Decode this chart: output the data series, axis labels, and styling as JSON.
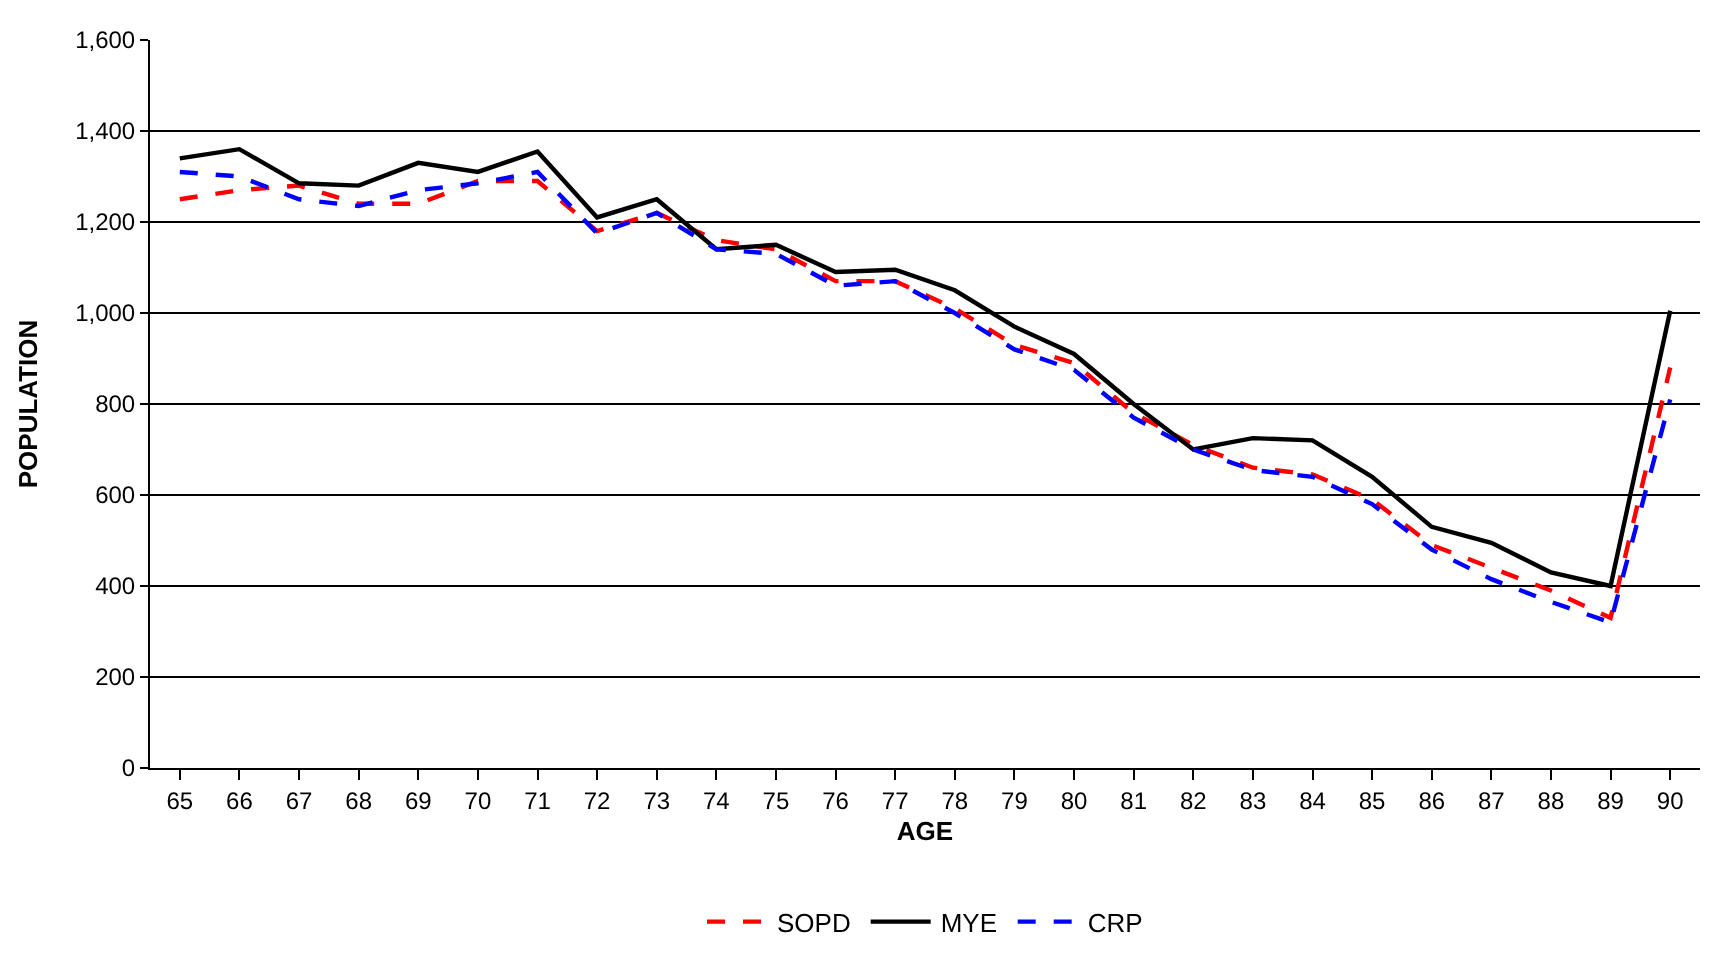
{
  "chart_data": {
    "type": "line",
    "xlabel": "AGE",
    "ylabel": "POPULATION",
    "categories": [
      "65",
      "66",
      "67",
      "68",
      "69",
      "70",
      "71",
      "72",
      "73",
      "74",
      "75",
      "76",
      "77",
      "78",
      "79",
      "80",
      "81",
      "82",
      "83",
      "84",
      "85",
      "86",
      "87",
      "88",
      "89",
      "90"
    ],
    "series": [
      {
        "name": "SOPD",
        "color": "#ff0000",
        "line_style": "dashed",
        "values": [
          1250,
          1270,
          1280,
          1240,
          1240,
          1290,
          1290,
          1180,
          1220,
          1160,
          1140,
          1070,
          1070,
          1010,
          930,
          890,
          780,
          710,
          660,
          645,
          590,
          490,
          440,
          390,
          330,
          880
        ]
      },
      {
        "name": "MYE",
        "color": "#000000",
        "line_style": "solid",
        "values": [
          1340,
          1360,
          1285,
          1280,
          1330,
          1310,
          1355,
          1210,
          1250,
          1140,
          1150,
          1090,
          1095,
          1050,
          970,
          910,
          800,
          700,
          725,
          720,
          640,
          530,
          495,
          430,
          400,
          1005
        ]
      },
      {
        "name": "CRP",
        "color": "#0000ff",
        "line_style": "dashed",
        "values": [
          1310,
          1300,
          1250,
          1235,
          1270,
          1285,
          1310,
          1175,
          1220,
          1140,
          1130,
          1060,
          1070,
          1000,
          920,
          875,
          770,
          700,
          655,
          640,
          580,
          480,
          415,
          365,
          320,
          810
        ]
      }
    ],
    "ylim": [
      0,
      1600
    ],
    "yticks": [
      {
        "value": 0,
        "label": "0"
      },
      {
        "value": 200,
        "label": "200"
      },
      {
        "value": 400,
        "label": "400"
      },
      {
        "value": 600,
        "label": "600"
      },
      {
        "value": 800,
        "label": "800"
      },
      {
        "value": 1000,
        "label": "1,000"
      },
      {
        "value": 1200,
        "label": "1,200"
      },
      {
        "value": 1400,
        "label": "1,400"
      },
      {
        "value": 1600,
        "label": "1,600"
      }
    ],
    "grid": "y",
    "legend": "bottom",
    "marker": "none"
  }
}
